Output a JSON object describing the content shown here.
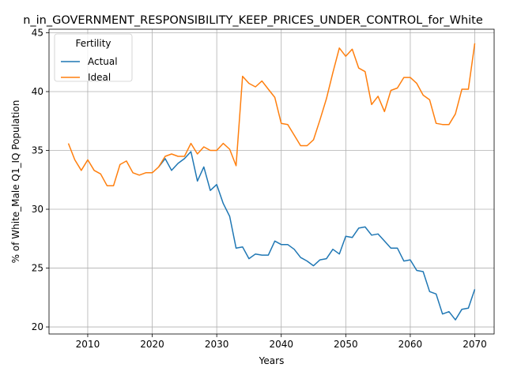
{
  "chart_data": {
    "type": "line",
    "title": "n_in_GOVERNMENT_RESPONSIBILITY_KEEP_PRICES_UNDER_CONTROL_for_White",
    "xlabel": "Years",
    "ylabel": "% of White_Male Q1_IQ Population",
    "xlim": [
      2004,
      2073
    ],
    "ylim": [
      19.4,
      45.3
    ],
    "xticks": [
      2010,
      2020,
      2030,
      2040,
      2050,
      2060,
      2070
    ],
    "yticks": [
      20,
      25,
      30,
      35,
      40,
      45
    ],
    "grid": true,
    "legend": {
      "title": "Fertility",
      "placement": "top-left"
    },
    "x": [
      2007,
      2008,
      2009,
      2010,
      2011,
      2012,
      2013,
      2014,
      2015,
      2016,
      2017,
      2018,
      2019,
      2020,
      2021,
      2022,
      2023,
      2024,
      2025,
      2026,
      2027,
      2028,
      2029,
      2030,
      2031,
      2032,
      2033,
      2034,
      2035,
      2036,
      2037,
      2038,
      2039,
      2040,
      2041,
      2042,
      2043,
      2044,
      2045,
      2046,
      2047,
      2048,
      2049,
      2050,
      2051,
      2052,
      2053,
      2054,
      2055,
      2056,
      2057,
      2058,
      2059,
      2060,
      2061,
      2062,
      2063,
      2064,
      2065,
      2066,
      2067,
      2068,
      2069,
      2070
    ],
    "series": [
      {
        "name": "Actual",
        "color": "#1f77b4",
        "values": [
          null,
          null,
          null,
          null,
          null,
          null,
          null,
          null,
          null,
          null,
          null,
          null,
          null,
          null,
          33.6,
          34.3,
          33.3,
          33.9,
          34.3,
          34.9,
          32.4,
          33.6,
          31.6,
          32.1,
          30.5,
          29.4,
          26.7,
          26.8,
          25.8,
          26.2,
          26.1,
          26.1,
          27.3,
          27.0,
          27.0,
          26.6,
          25.9,
          25.6,
          25.2,
          25.7,
          25.8,
          26.6,
          26.2,
          27.7,
          27.6,
          28.4,
          28.5,
          27.8,
          27.9,
          27.3,
          26.7,
          26.7,
          25.6,
          25.7,
          24.8,
          24.7,
          23.0,
          22.8,
          21.1,
          21.3,
          20.6,
          21.5,
          21.6,
          23.2
        ]
      },
      {
        "name": "Ideal",
        "color": "#ff7f0e",
        "values": [
          35.6,
          34.2,
          33.3,
          34.2,
          33.3,
          33.0,
          32.0,
          32.0,
          33.8,
          34.1,
          33.1,
          32.9,
          33.1,
          33.1,
          33.6,
          34.5,
          34.7,
          34.5,
          34.5,
          35.6,
          34.7,
          35.3,
          35.0,
          35.0,
          35.6,
          35.1,
          33.7,
          41.3,
          40.7,
          40.4,
          40.9,
          40.2,
          39.5,
          37.3,
          37.2,
          36.3,
          35.4,
          35.4,
          35.9,
          37.6,
          39.4,
          41.6,
          43.7,
          43.0,
          43.6,
          42.0,
          41.7,
          38.9,
          39.6,
          38.3,
          40.1,
          40.3,
          41.2,
          41.2,
          40.7,
          39.7,
          39.3,
          37.3,
          37.2,
          37.2,
          38.1,
          40.2,
          40.2,
          44.1
        ]
      }
    ]
  }
}
